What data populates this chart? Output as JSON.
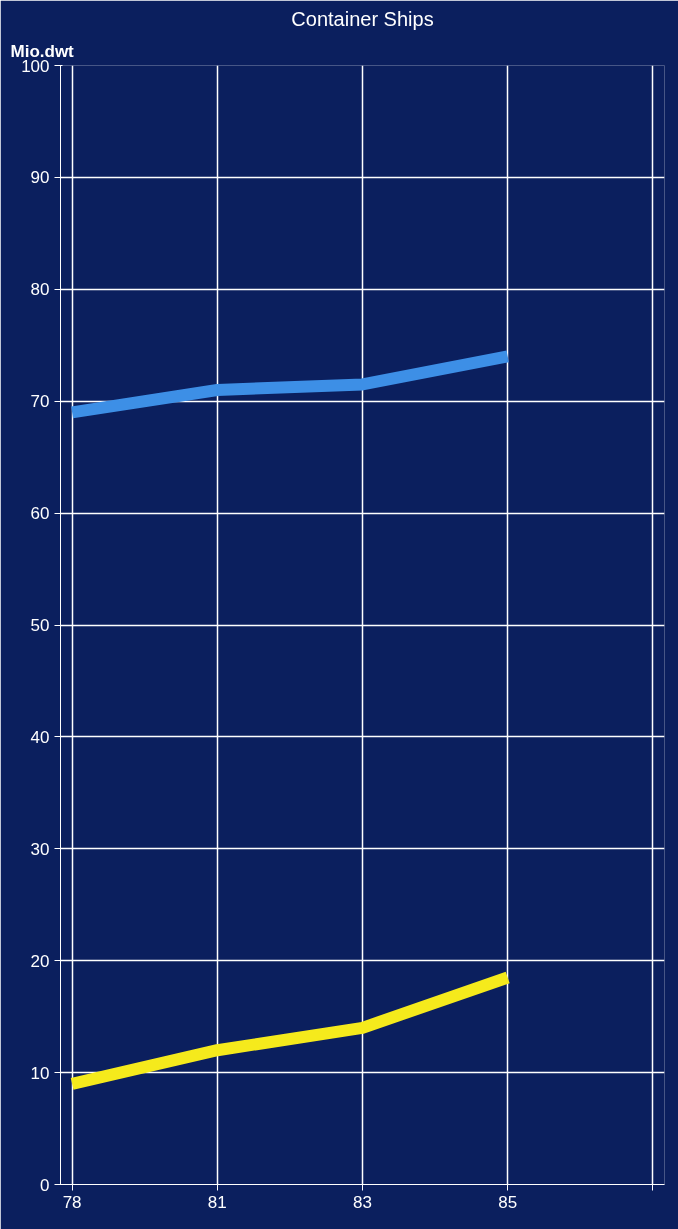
{
  "chart_data": {
    "type": "line",
    "title": "Container Ships",
    "ylabel": "Mio.dwt",
    "categories": [
      "78",
      "81",
      "83",
      "85",
      null
    ],
    "series": [
      {
        "color": "#3d8fe6",
        "values": [
          69,
          71,
          71.5,
          74,
          null
        ]
      },
      {
        "color": "#f5ea1c",
        "values": [
          9,
          12,
          14,
          18.5,
          null
        ]
      }
    ],
    "ylim": [
      0,
      100
    ],
    "yticks": [
      0,
      10,
      20,
      30,
      40,
      50,
      60,
      70,
      80,
      90,
      100
    ],
    "grid": true,
    "marker": "none",
    "line_style": "solid"
  }
}
